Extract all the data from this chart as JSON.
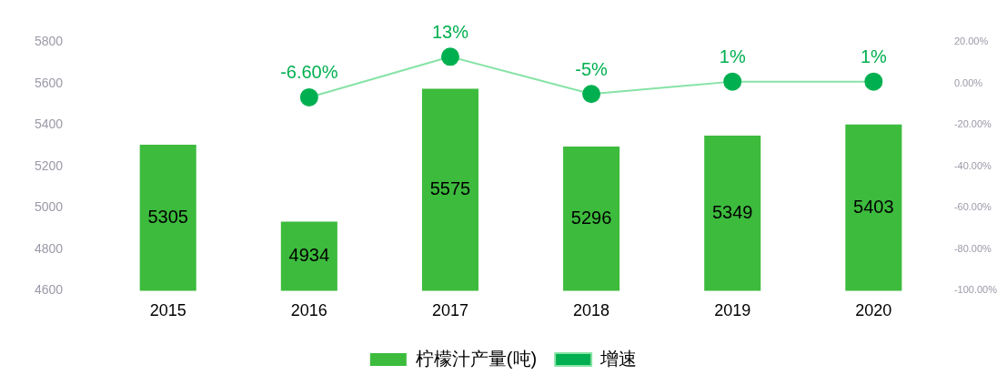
{
  "chart_data": {
    "type": "bar",
    "categories": [
      "2015",
      "2016",
      "2017",
      "2018",
      "2019",
      "2020"
    ],
    "series": [
      {
        "name": "柠檬汁产量(吨)",
        "color": "#3dbb3d",
        "values": [
          5305,
          4934,
          5575,
          5296,
          5349,
          5403
        ]
      },
      {
        "name": "增速",
        "type": "line",
        "axis": "y2",
        "color": "#00b050",
        "values": [
          null,
          -6.6,
          13,
          -5,
          1,
          1
        ],
        "value_labels": [
          null,
          "-6.60%",
          "13%",
          "-5%",
          "1%",
          "1%"
        ]
      }
    ],
    "data_labels": true,
    "ylim": [
      4600,
      5800
    ],
    "yticks": [
      4600,
      4800,
      5000,
      5200,
      5400,
      5600,
      5800
    ],
    "y2lim": [
      -100,
      20
    ],
    "y2ticks": [
      {
        "value": -100,
        "label": "-100.00%"
      },
      {
        "value": -80,
        "label": "-80.00%"
      },
      {
        "value": -60,
        "label": "-60.00%"
      },
      {
        "value": -40,
        "label": "-40.00%"
      },
      {
        "value": -20,
        "label": "-20.00%"
      },
      {
        "value": 0,
        "label": "0.00%"
      },
      {
        "value": 20,
        "label": "20.00%"
      }
    ],
    "grid": false,
    "legend": "bottom",
    "marker": "circle",
    "line_style": "solid"
  }
}
